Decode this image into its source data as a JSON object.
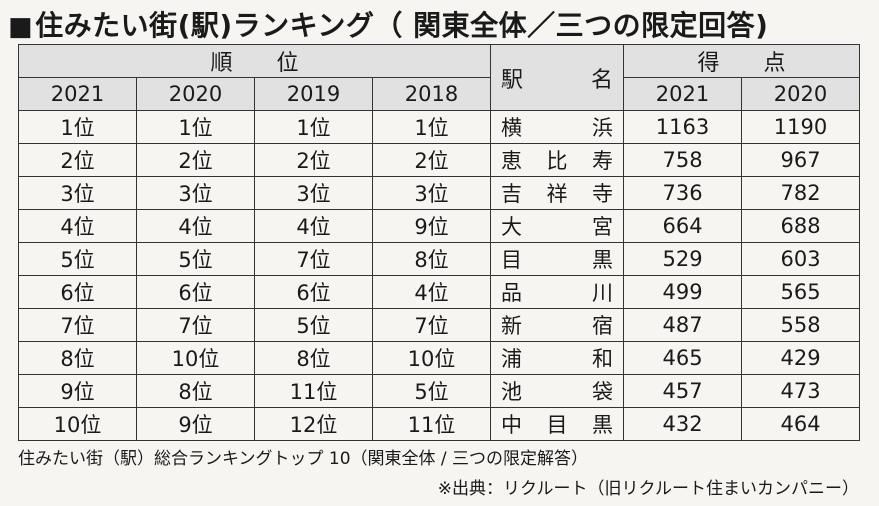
{
  "title": "住みたい街(駅)ランキング（ 関東全体／三つの限定回答)",
  "title_marker": "■",
  "table": {
    "header_rank": "順　　位",
    "header_station": "駅　　名",
    "header_score": "得　　点",
    "rank_years": [
      "2021",
      "2020",
      "2019",
      "2018"
    ],
    "score_years": [
      "2021",
      "2020"
    ],
    "rows": [
      {
        "r2021": "1位",
        "r2020": "1位",
        "r2019": "1位",
        "r2018": "1位",
        "station": "横浜",
        "s2021": "1163",
        "s2020": "1190"
      },
      {
        "r2021": "2位",
        "r2020": "2位",
        "r2019": "2位",
        "r2018": "2位",
        "station": "恵比寿",
        "s2021": "758",
        "s2020": "967"
      },
      {
        "r2021": "3位",
        "r2020": "3位",
        "r2019": "3位",
        "r2018": "3位",
        "station": "吉祥寺",
        "s2021": "736",
        "s2020": "782"
      },
      {
        "r2021": "4位",
        "r2020": "4位",
        "r2019": "4位",
        "r2018": "9位",
        "station": "大宮",
        "s2021": "664",
        "s2020": "688"
      },
      {
        "r2021": "5位",
        "r2020": "5位",
        "r2019": "7位",
        "r2018": "8位",
        "station": "目黒",
        "s2021": "529",
        "s2020": "603"
      },
      {
        "r2021": "6位",
        "r2020": "6位",
        "r2019": "6位",
        "r2018": "4位",
        "station": "品川",
        "s2021": "499",
        "s2020": "565"
      },
      {
        "r2021": "7位",
        "r2020": "7位",
        "r2019": "5位",
        "r2018": "7位",
        "station": "新宿",
        "s2021": "487",
        "s2020": "558"
      },
      {
        "r2021": "8位",
        "r2020": "10位",
        "r2019": "8位",
        "r2018": "10位",
        "station": "浦和",
        "s2021": "465",
        "s2020": "429"
      },
      {
        "r2021": "9位",
        "r2020": "8位",
        "r2019": "11位",
        "r2018": "5位",
        "station": "池袋",
        "s2021": "457",
        "s2020": "473"
      },
      {
        "r2021": "10位",
        "r2020": "9位",
        "r2019": "12位",
        "r2018": "11位",
        "station": "中目黒",
        "s2021": "432",
        "s2020": "464"
      }
    ]
  },
  "caption": "住みたい街（駅）総合ランキングトップ 10（関東全体 / 三つの限定解答）",
  "source": "※出典：リクルート（旧リクルート住まいカンパニー）"
}
